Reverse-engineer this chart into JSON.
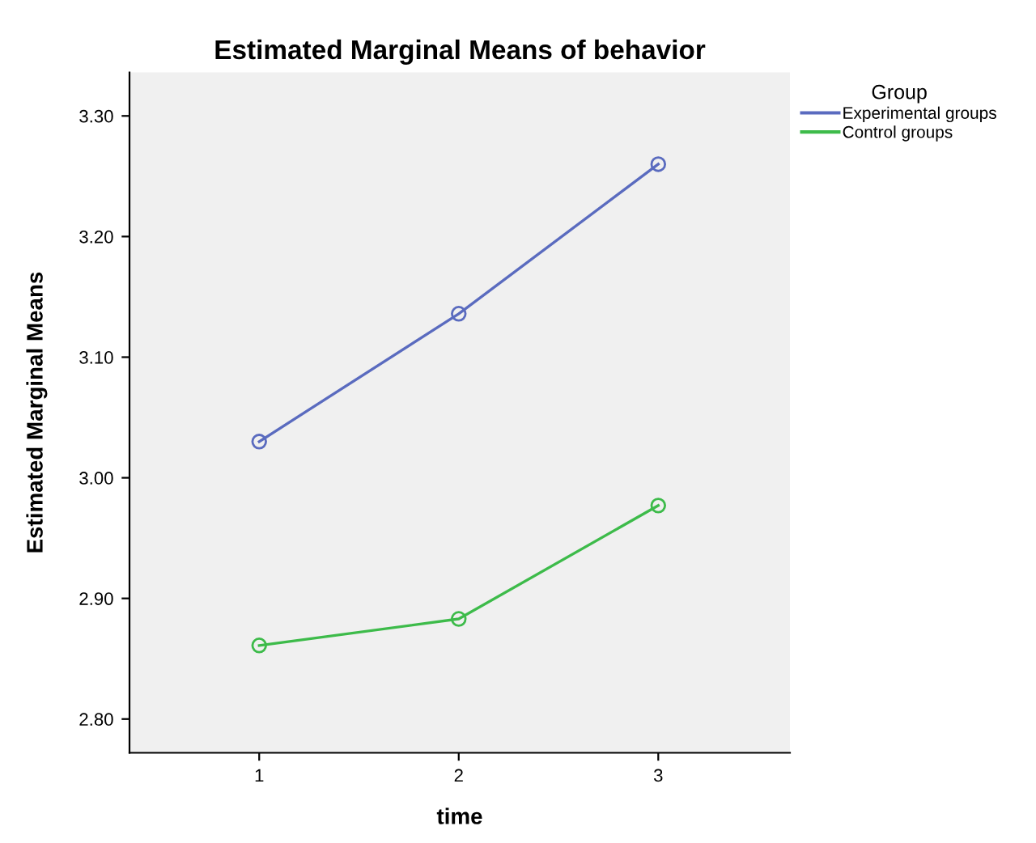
{
  "chart_data": {
    "type": "line",
    "title": "Estimated Marginal Means of behavior",
    "xlabel": "time",
    "ylabel": "Estimated Marginal Means",
    "legend_title": "Group",
    "x": [
      1,
      2,
      3
    ],
    "series": [
      {
        "name": "Experimental groups",
        "color": "#5a6bbf",
        "values": [
          3.03,
          3.136,
          3.26
        ]
      },
      {
        "name": "Control groups",
        "color": "#3dbb4a",
        "values": [
          2.861,
          2.883,
          2.977
        ]
      }
    ],
    "xlim": [
      0.35,
      3.66
    ],
    "xticks": [
      1,
      2,
      3
    ],
    "ylim": [
      2.772,
      3.336
    ],
    "yticks": [
      {
        "value": 2.8,
        "label": "2.80"
      },
      {
        "value": 2.9,
        "label": "2.90"
      },
      {
        "value": 3.0,
        "label": "3.00"
      },
      {
        "value": 3.1,
        "label": "3.10"
      },
      {
        "value": 3.2,
        "label": "3.20"
      },
      {
        "value": 3.3,
        "label": "3.30"
      }
    ],
    "marker": "circle",
    "line_style": "solid",
    "grid": false,
    "legend": "top right"
  }
}
